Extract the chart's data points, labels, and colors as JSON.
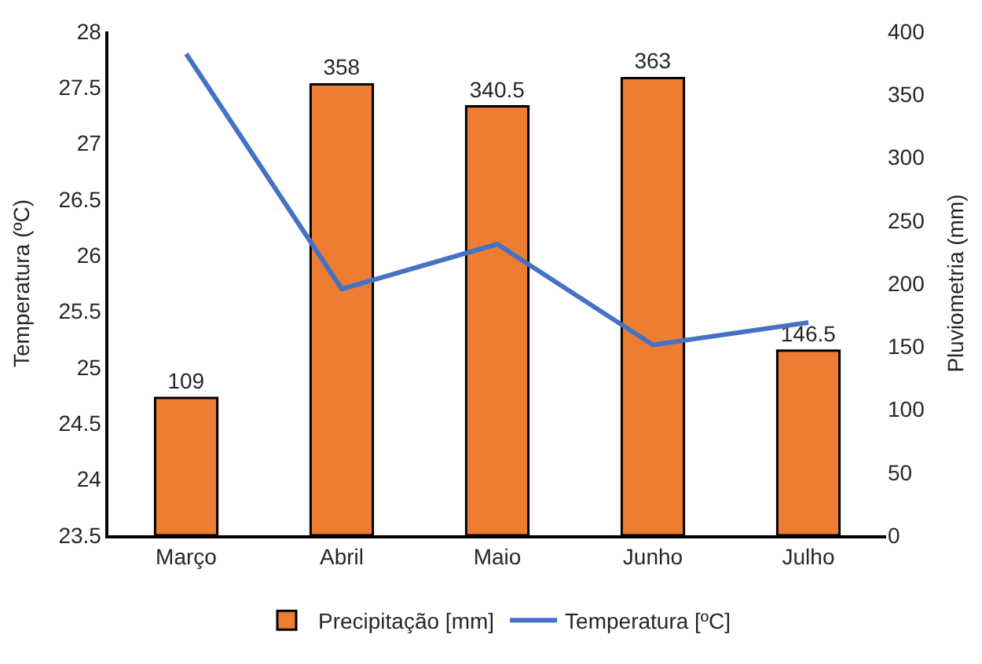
{
  "chart_data": {
    "type": "bar",
    "categories": [
      "Março",
      "Abril",
      "Maio",
      "Junho",
      "Julho"
    ],
    "series": [
      {
        "name": "Precipitação [mm]",
        "axis": "y2",
        "color": "#ed7d31",
        "values": [
          109,
          358,
          340.5,
          363,
          146.5
        ],
        "value_labels": [
          "109",
          "358",
          "340.5",
          "363",
          "146.5"
        ]
      },
      {
        "name": "Temperatura [ºC]",
        "type": "line",
        "axis": "y",
        "color": "#4472c4",
        "values": [
          27.8,
          25.7,
          26.1,
          25.2,
          25.4
        ],
        "marker": "none"
      }
    ],
    "ylabel": "Temperatura (ºC)",
    "y2label": "Pluviometria (mm)",
    "ylim": [
      23.5,
      28
    ],
    "yticks": [
      23.5,
      24,
      24.5,
      25,
      25.5,
      26,
      26.5,
      27,
      27.5,
      28
    ],
    "y2lim": [
      0,
      400
    ],
    "y2ticks": [
      0,
      50,
      100,
      150,
      200,
      250,
      300,
      350,
      400
    ],
    "legend": "bottom"
  }
}
